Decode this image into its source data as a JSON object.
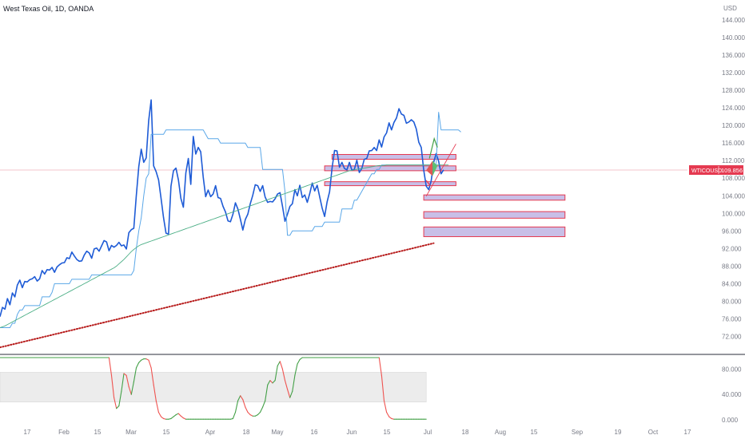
{
  "header": {
    "symbol_title": "West Texas Oil, 1D, OANDA",
    "currency": "USD"
  },
  "price_badge": {
    "symbol": "WTICOUSD",
    "price": "109.856"
  },
  "colors": {
    "price_line": "#1e5bd6",
    "donchian_line": "#5aa7e8",
    "ma_line": "#4caf86",
    "long_ma_dots": "#b71c1c",
    "zone_fill": "#c8bfe7",
    "zone_border": "#e53950",
    "stoch_up": "#43a047",
    "stoch_down": "#ef5350",
    "stoch_band": "#ececec",
    "axis_text": "#787b86",
    "separator": "#2a2e39",
    "badge_bg": "#e53950"
  },
  "chart_data": {
    "type": "line",
    "title": "West Texas Oil, 1D, OANDA",
    "price_axis": {
      "ticks": [
        "144.000",
        "140.000",
        "136.000",
        "132.000",
        "128.000",
        "124.000",
        "120.000",
        "116.000",
        "112.000",
        "108.000",
        "104.000",
        "100.000",
        "96.000",
        "92.000",
        "88.000",
        "84.000",
        "80.000",
        "76.000",
        "72.000"
      ],
      "ylim": [
        69,
        146
      ]
    },
    "x_axis": {
      "ticks": [
        "17",
        "Feb",
        "15",
        "Mar",
        "15",
        "Apr",
        "18",
        "May",
        "16",
        "Jun",
        "15",
        "Jul",
        "18",
        "Aug",
        "15",
        "Sep",
        "19",
        "Oct",
        "17"
      ]
    },
    "series": [
      {
        "name": "WTICOUSD",
        "values": [
          76.5,
          78.6,
          78.2,
          80.6,
          79.2,
          81.9,
          81.0,
          83.7,
          84.8,
          83.1,
          84.5,
          84.4,
          84.9,
          85.1,
          85.6,
          84.6,
          85.1,
          87.0,
          86.2,
          87.2,
          87.1,
          87.7,
          86.6,
          87.8,
          88.3,
          88.7,
          88.8,
          89.9,
          89.7,
          91.2,
          90.3,
          89.5,
          89.1,
          89.2,
          90.5,
          91.4,
          91.0,
          89.8,
          91.9,
          92.1,
          91.4,
          92.6,
          93.8,
          93.5,
          91.5,
          92.7,
          92.3,
          92.7,
          93.4,
          92.6,
          92.8,
          91.9,
          95.6,
          96.3,
          96.6,
          104.0,
          110.6,
          114.6,
          111.6,
          112.6,
          121.1,
          125.8,
          110.8,
          109.5,
          107.6,
          103.4,
          99.0,
          95.5,
          95.3,
          106.2,
          109.7,
          110.3,
          107.6,
          103.4,
          101.4,
          109.2,
          112.5,
          106.6,
          117.5,
          113.5,
          115.0,
          114.0,
          108.3,
          103.8,
          105.3,
          103.8,
          104.4,
          106.3,
          103.6,
          103.4,
          101.6,
          100.3,
          98.3,
          98.1,
          99.8,
          102.4,
          101.0,
          98.7,
          96.2,
          98.6,
          99.8,
          102.2,
          104.1,
          106.5,
          106.3,
          105.0,
          106.3,
          103.7,
          102.5,
          102.7,
          102.6,
          103.3,
          104.4,
          104.7,
          101.6,
          98.2,
          99.8,
          101.6,
          102.2,
          105.4,
          104.0,
          106.4,
          103.6,
          104.2,
          102.5,
          104.5,
          106.9,
          105.1,
          106.4,
          103.8,
          101.2,
          99.3,
          102.6,
          104.9,
          110.3,
          114.3,
          114.2,
          110.5,
          111.6,
          110.2,
          109.9,
          111.6,
          109.8,
          110.0,
          112.1,
          109.3,
          110.2,
          112.3,
          112.5,
          114.2,
          114.3,
          115.0,
          114.3,
          116.7,
          115.1,
          117.4,
          118.3,
          120.6,
          119.0,
          120.7,
          121.7,
          123.8,
          122.6,
          122.3,
          120.5,
          120.8,
          121.3,
          120.8,
          119.2,
          116.2,
          115.0,
          109.8,
          106.2,
          105.4,
          107.4,
          111.6,
          113.6,
          111.9,
          109.0,
          109.9
        ]
      },
      {
        "name": "donchian",
        "values": [
          74,
          74,
          74,
          74,
          74,
          75,
          75,
          77,
          78,
          78,
          79,
          79,
          79,
          79,
          79,
          79,
          79,
          81,
          81,
          81,
          81,
          82,
          84,
          84,
          84,
          84,
          84,
          84,
          84,
          85,
          85,
          85,
          85,
          85,
          85,
          85,
          85,
          86,
          86,
          86,
          86,
          86,
          86,
          86,
          86,
          86,
          86,
          86,
          86,
          86,
          86,
          86,
          86,
          86,
          87,
          92,
          96,
          99,
          104,
          108,
          109,
          118,
          118,
          118,
          118,
          118,
          118,
          119,
          119,
          119,
          119,
          119,
          119,
          119,
          119,
          119,
          119,
          119,
          119,
          119,
          119,
          119,
          119,
          118,
          117,
          117,
          117,
          117,
          117,
          116,
          116,
          116,
          116,
          116,
          116,
          116,
          116,
          116,
          116,
          116,
          115,
          115,
          115,
          115,
          115,
          115,
          110,
          110,
          110,
          110,
          110,
          110,
          110,
          110,
          110,
          105,
          95,
          95,
          96,
          96,
          96,
          96,
          96,
          96,
          96,
          96,
          96,
          97,
          97,
          97,
          97,
          98,
          98,
          98,
          98,
          98,
          98,
          98,
          101,
          101,
          101,
          101,
          101,
          103,
          103,
          104,
          105,
          106,
          107,
          108,
          109,
          109,
          110,
          110,
          111,
          111,
          111,
          111,
          111,
          111,
          111,
          111,
          111,
          111,
          111,
          111,
          111,
          111,
          111,
          111,
          111,
          111,
          111,
          111,
          111,
          111,
          111,
          123,
          119,
          119,
          119,
          119,
          119,
          119,
          119,
          119,
          118.5
        ]
      },
      {
        "name": "ma",
        "values": [
          74,
          74.2,
          74.4,
          74.7,
          75,
          75.3,
          75.6,
          75.9,
          76.2,
          76.5,
          76.8,
          77.1,
          77.4,
          77.7,
          78,
          78.3,
          78.6,
          78.9,
          79.2,
          79.5,
          79.8,
          80.1,
          80.4,
          80.7,
          81,
          81.3,
          81.6,
          81.9,
          82.2,
          82.5,
          82.8,
          83.1,
          83.4,
          83.7,
          84,
          84.3,
          84.6,
          84.9,
          85.2,
          85.5,
          85.8,
          86.1,
          86.4,
          86.7,
          87,
          87.3,
          87.6,
          88,
          88.5,
          89,
          89.5,
          90.1,
          90.7,
          91.3,
          91.8,
          92.2,
          92.6,
          92.9,
          93.1,
          93.3,
          93.5,
          93.7,
          93.9,
          94.1,
          94.3,
          94.5,
          94.7,
          94.9,
          95.1,
          95.3,
          95.5,
          95.7,
          95.9,
          96.1,
          96.3,
          96.5,
          96.7,
          96.9,
          97.1,
          97.3,
          97.5,
          97.7,
          97.9,
          98.1,
          98.3,
          98.5,
          98.7,
          98.9,
          99.1,
          99.3,
          99.5,
          99.7,
          99.9,
          100.1,
          100.3,
          100.5,
          100.7,
          100.9,
          101.1,
          101.3,
          101.5,
          101.7,
          101.9,
          102.1,
          102.3,
          102.5,
          102.7,
          102.9,
          103.1,
          103.3,
          103.5,
          103.7,
          103.9,
          104.1,
          104.3,
          104.5,
          104.7,
          104.9,
          105.1,
          105.3,
          105.5,
          105.7,
          105.9,
          106.1,
          106.3,
          106.5,
          106.7,
          106.9,
          107.1,
          107.3,
          107.5,
          107.7,
          107.9,
          108.1,
          108.3,
          108.5,
          108.7,
          108.9,
          109.1,
          109.3,
          109.5,
          109.7,
          109.8,
          109.9,
          110,
          110.1,
          110.2,
          110.3,
          110.4,
          110.5,
          110.6,
          110.7,
          110.8,
          110.9,
          110.9,
          110.9,
          111,
          111,
          111,
          111,
          111,
          111,
          111,
          111,
          111,
          111,
          111,
          111,
          111,
          111,
          111,
          111,
          111,
          111,
          111,
          111,
          111,
          111,
          111,
          111,
          111,
          111
        ]
      },
      {
        "name": "long_ma",
        "values": [
          69.5,
          69.8,
          70.1,
          70.4,
          70.7,
          71,
          71.3,
          71.6,
          71.9,
          72.2,
          72.5,
          72.8,
          73.1,
          73.4,
          73.7,
          74,
          74.3,
          74.6,
          74.9,
          75.2,
          75.5,
          75.8,
          76.1,
          76.4,
          76.7,
          77,
          77.3,
          77.6,
          77.9,
          78.2,
          78.5,
          78.8,
          79.1,
          79.4,
          79.7,
          80,
          80.3,
          80.6,
          80.9,
          81.2,
          81.5,
          81.8,
          82.1,
          82.4,
          82.7,
          83,
          83.3,
          83.6,
          83.9,
          84.2,
          84.5,
          84.8,
          85.1,
          85.4,
          85.7,
          86,
          86.3,
          86.6,
          86.9,
          87.2,
          87.5,
          87.8,
          88.1,
          88.4,
          88.7,
          89,
          89.3,
          89.6,
          89.9,
          90.2,
          90.5,
          90.8,
          91.1,
          91.4,
          91.7,
          92,
          92.3,
          92.6,
          92.9,
          93.2
        ]
      }
    ],
    "zones": [
      {
        "x_from": 171,
        "x_to": 228,
        "top": 104.2,
        "bottom": 103.0
      },
      {
        "x_from": 171,
        "x_to": 228,
        "top": 100.4,
        "bottom": 98.9
      },
      {
        "x_from": 171,
        "x_to": 228,
        "top": 96.9,
        "bottom": 94.7
      },
      {
        "x_from": 131,
        "x_to": 184,
        "top": 110.8,
        "bottom": 109.7
      },
      {
        "x_from": 131,
        "x_to": 184,
        "top": 107.2,
        "bottom": 106.3
      },
      {
        "x_from": 134,
        "x_to": 184,
        "top": 113.4,
        "bottom": 112.3
      }
    ],
    "trendline": {
      "x_from": 172,
      "y_from": 103.9,
      "x_to": 184,
      "y_to": 115.8
    },
    "stochastic": {
      "ticks": [
        "80.000",
        "40.000",
        "0.000"
      ],
      "ylim": [
        -5,
        98
      ],
      "band": [
        28,
        75
      ],
      "values": [
        98,
        98,
        98,
        98,
        98,
        98,
        98,
        98,
        98,
        98,
        98,
        98,
        98,
        98,
        98,
        98,
        98,
        98,
        98,
        98,
        98,
        98,
        98,
        98,
        98,
        98,
        98,
        98,
        98,
        98,
        98,
        98,
        98,
        98,
        98,
        98,
        98,
        98,
        98,
        98,
        98,
        98,
        98,
        98,
        98,
        70,
        35,
        18,
        22,
        45,
        73,
        70,
        52,
        40,
        60,
        82,
        90,
        94,
        96,
        96,
        94,
        82,
        55,
        30,
        12,
        5,
        2,
        1,
        1,
        2,
        5,
        8,
        10,
        6,
        3,
        1,
        1,
        1,
        1,
        1,
        1,
        1,
        1,
        1,
        1,
        1,
        1,
        1,
        1,
        1,
        1,
        1,
        1,
        1,
        2,
        12,
        30,
        38,
        32,
        20,
        12,
        8,
        6,
        6,
        8,
        12,
        20,
        30,
        55,
        62,
        58,
        62,
        85,
        92,
        80,
        62,
        48,
        35,
        45,
        70,
        88,
        95,
        98,
        98,
        98,
        98,
        98,
        98,
        98,
        98,
        98,
        98,
        98,
        98,
        98,
        98,
        98,
        98,
        98,
        98,
        98,
        98,
        98,
        98,
        98,
        98,
        98,
        98,
        98,
        98,
        98,
        98,
        98,
        98,
        70,
        30,
        12,
        5,
        2,
        1,
        1,
        1,
        1,
        1,
        1,
        1,
        1,
        1,
        1,
        1,
        1,
        1,
        1
      ]
    }
  }
}
